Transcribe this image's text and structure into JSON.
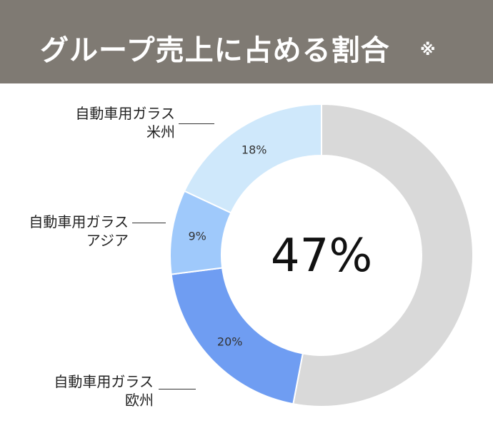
{
  "header": {
    "title": "グループ売上に占める割合",
    "note": "※"
  },
  "center_label": "47%",
  "chart_data": {
    "type": "pie",
    "title": "グループ売上に占める割合",
    "slices": [
      {
        "name": "",
        "value": 53,
        "label": "",
        "color": "#d9d9d9"
      },
      {
        "name": "自動車用ガラス 欧州",
        "value": 20,
        "label": "20%",
        "color": "#6f9df2"
      },
      {
        "name": "自動車用ガラス アジア",
        "value": 9,
        "label": "9%",
        "color": "#9fc9fb"
      },
      {
        "name": "自動車用ガラス 米州",
        "value": 18,
        "label": "18%",
        "color": "#cfe8fb"
      }
    ]
  },
  "labels": {
    "americas": {
      "line1": "自動車用ガラス",
      "line2": "米州"
    },
    "asia": {
      "line1": "自動車用ガラス",
      "line2": "アジア"
    },
    "europe": {
      "line1": "自動車用ガラス",
      "line2": "欧州"
    }
  }
}
